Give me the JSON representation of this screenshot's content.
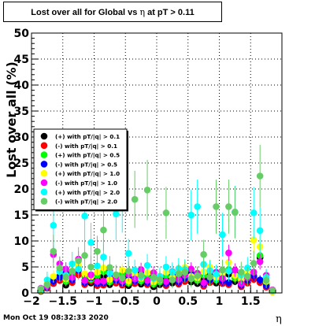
{
  "title": {
    "prefix": "Lost over all for Global vs",
    "symbol": "η",
    "suffix": "at pT > 0.11"
  },
  "footer": {
    "timestamp": "Mon Oct 19 08:32:33 2020"
  },
  "chart_data": {
    "type": "scatter",
    "ylabel": "Lost over all (%)",
    "xunit": "η",
    "xlim": [
      -2,
      2
    ],
    "ylim": [
      0,
      50
    ],
    "xticks": [
      -2,
      -1.5,
      -1,
      -0.5,
      0,
      0.5,
      1,
      1.5
    ],
    "xtick_labels": [
      "−2",
      "−1.5",
      "−1",
      "−0.5",
      "0",
      "0.5",
      "1",
      "1.5"
    ],
    "yticks": [
      0,
      5,
      10,
      15,
      20,
      25,
      30,
      35,
      40,
      45,
      50
    ],
    "grid": true,
    "legend_position": "center-left",
    "series": [
      {
        "name": "(+) with pT/|q| > 0.1",
        "color": "#000000",
        "x": [
          -1.85,
          -1.75,
          -1.65,
          -1.55,
          -1.45,
          -1.35,
          -1.25,
          -1.15,
          -1.05,
          -0.95,
          -0.85,
          -0.75,
          -0.65,
          -0.55,
          -0.45,
          -0.35,
          -0.25,
          -0.15,
          -0.05,
          0.05,
          0.15,
          0.25,
          0.35,
          0.45,
          0.55,
          0.65,
          0.75,
          0.85,
          0.95,
          1.05,
          1.15,
          1.25,
          1.35,
          1.45,
          1.55,
          1.65,
          1.75,
          1.85
        ],
        "y": [
          0.3,
          1.2,
          2.0,
          3.2,
          1.5,
          2.8,
          3.6,
          2.4,
          1.9,
          2.6,
          3.2,
          1.6,
          2.2,
          2.9,
          1.4,
          2.3,
          1.7,
          2.5,
          1.2,
          1.6,
          2.6,
          1.9,
          2.8,
          3.2,
          2.1,
          1.8,
          2.6,
          3.3,
          1.9,
          2.5,
          3.6,
          2.2,
          1.6,
          2.6,
          3.1,
          6.8,
          1.4,
          0.2
        ],
        "err": [
          0.3,
          0.6,
          0.7,
          0.8,
          0.6,
          0.7,
          0.8,
          0.7,
          0.6,
          0.7,
          0.8,
          0.6,
          0.7,
          0.7,
          0.6,
          0.7,
          0.6,
          0.7,
          0.5,
          0.6,
          0.7,
          0.6,
          0.7,
          0.8,
          0.6,
          0.6,
          0.7,
          0.8,
          0.6,
          0.7,
          0.8,
          0.7,
          0.6,
          0.7,
          0.8,
          1.0,
          0.6,
          0.3
        ]
      },
      {
        "name": "(-) with pT/|q| > 0.1",
        "color": "#ff0000",
        "x": [
          -1.85,
          -1.75,
          -1.65,
          -1.55,
          -1.45,
          -1.35,
          -1.25,
          -1.15,
          -1.05,
          -0.95,
          -0.85,
          -0.75,
          -0.65,
          -0.55,
          -0.45,
          -0.35,
          -0.25,
          -0.15,
          -0.05,
          0.05,
          0.15,
          0.25,
          0.35,
          0.45,
          0.55,
          0.65,
          0.75,
          0.85,
          0.95,
          1.05,
          1.15,
          1.25,
          1.35,
          1.45,
          1.55,
          1.65,
          1.75,
          1.85
        ],
        "y": [
          0.6,
          0.9,
          1.8,
          2.4,
          3.1,
          2.0,
          3.5,
          1.6,
          2.3,
          1.4,
          1.5,
          2.8,
          1.9,
          1.5,
          2.4,
          1.8,
          3.0,
          1.6,
          2.5,
          2.1,
          1.4,
          2.7,
          1.7,
          2.2,
          3.0,
          2.5,
          1.3,
          2.0,
          2.7,
          1.8,
          1.6,
          2.9,
          1.2,
          1.9,
          2.6,
          2.0,
          1.1,
          0.4
        ],
        "err": [
          0.3,
          0.5,
          0.6,
          0.7,
          0.8,
          0.6,
          0.8,
          0.6,
          0.7,
          0.6,
          0.6,
          0.7,
          0.6,
          0.6,
          0.7,
          0.6,
          0.7,
          0.6,
          0.7,
          0.6,
          0.5,
          0.7,
          0.6,
          0.6,
          0.7,
          0.7,
          0.5,
          0.6,
          0.7,
          0.6,
          0.6,
          0.7,
          0.5,
          0.6,
          0.7,
          0.6,
          0.5,
          0.3
        ]
      },
      {
        "name": "(+) with pT/|q| > 0.5",
        "color": "#00ff00",
        "x": [
          -1.85,
          -1.75,
          -1.65,
          -1.55,
          -1.45,
          -1.35,
          -1.25,
          -1.15,
          -1.05,
          -0.95,
          -0.85,
          -0.75,
          -0.65,
          -0.55,
          -0.45,
          -0.35,
          -0.25,
          -0.15,
          -0.05,
          0.05,
          0.15,
          0.25,
          0.35,
          0.45,
          0.55,
          0.65,
          0.75,
          0.85,
          0.95,
          1.05,
          1.15,
          1.25,
          1.35,
          1.45,
          1.55,
          1.65,
          1.75,
          1.85
        ],
        "y": [
          0.5,
          1.4,
          2.6,
          4.2,
          2.2,
          3.6,
          4.6,
          3.1,
          2.6,
          3.3,
          4.1,
          2.1,
          2.9,
          3.7,
          1.9,
          3.0,
          2.3,
          3.2,
          1.7,
          2.1,
          3.3,
          2.5,
          3.6,
          4.1,
          2.7,
          2.4,
          3.4,
          4.2,
          2.5,
          3.2,
          4.5,
          2.8,
          2.1,
          3.3,
          3.9,
          7.2,
          1.8,
          0.3
        ],
        "err": [
          0.4,
          0.8,
          0.9,
          1.1,
          0.9,
          1.0,
          1.1,
          1.0,
          0.9,
          1.0,
          1.1,
          0.9,
          1.0,
          1.0,
          0.8,
          1.0,
          0.9,
          1.0,
          0.8,
          0.9,
          1.0,
          0.9,
          1.0,
          1.1,
          0.9,
          0.9,
          1.0,
          1.1,
          0.9,
          1.0,
          1.1,
          1.0,
          0.9,
          1.0,
          1.1,
          1.4,
          0.8,
          0.4
        ]
      },
      {
        "name": "(-) with pT/|q| > 0.5",
        "color": "#0000ff",
        "x": [
          -1.85,
          -1.75,
          -1.65,
          -1.55,
          -1.45,
          -1.35,
          -1.25,
          -1.15,
          -1.05,
          -0.95,
          -0.85,
          -0.75,
          -0.65,
          -0.55,
          -0.45,
          -0.35,
          -0.25,
          -0.15,
          -0.05,
          0.05,
          0.15,
          0.25,
          0.35,
          0.45,
          0.55,
          0.65,
          0.75,
          0.85,
          0.95,
          1.05,
          1.15,
          1.25,
          1.35,
          1.45,
          1.55,
          1.65,
          1.75,
          1.85
        ],
        "y": [
          0.8,
          1.1,
          2.3,
          3.0,
          3.9,
          2.5,
          4.4,
          2.0,
          2.9,
          1.8,
          1.9,
          3.6,
          2.4,
          1.9,
          3.0,
          2.3,
          3.8,
          2.0,
          3.2,
          2.7,
          1.8,
          3.4,
          2.1,
          2.8,
          3.8,
          3.2,
          1.7,
          2.5,
          3.4,
          2.3,
          2.0,
          3.7,
          1.5,
          2.4,
          3.3,
          2.5,
          1.4,
          0.5
        ],
        "err": [
          0.4,
          0.7,
          0.9,
          1.0,
          1.1,
          0.9,
          1.1,
          0.8,
          1.0,
          0.8,
          0.8,
          1.0,
          0.9,
          0.8,
          1.0,
          0.9,
          1.1,
          0.8,
          1.0,
          0.9,
          0.8,
          1.0,
          0.9,
          0.9,
          1.0,
          1.0,
          0.8,
          0.9,
          1.0,
          0.9,
          0.8,
          1.0,
          0.7,
          0.9,
          1.0,
          0.9,
          0.7,
          0.4
        ]
      },
      {
        "name": "(+) with pT/|q| > 1.0",
        "color": "#ffff00",
        "x": [
          -1.85,
          -1.75,
          -1.65,
          -1.55,
          -1.45,
          -1.35,
          -1.25,
          -1.15,
          -1.05,
          -0.95,
          -0.85,
          -0.75,
          -0.65,
          -0.55,
          -0.45,
          -0.35,
          -0.25,
          -0.15,
          -0.05,
          0.05,
          0.15,
          0.25,
          0.35,
          0.45,
          0.55,
          0.65,
          0.75,
          0.85,
          0.95,
          1.05,
          1.15,
          1.25,
          1.35,
          1.45,
          1.55,
          1.65,
          1.75,
          1.85
        ],
        "y": [
          0.4,
          1.8,
          3.2,
          5.0,
          2.7,
          4.2,
          5.3,
          3.7,
          3.1,
          4.0,
          4.8,
          2.6,
          3.5,
          4.4,
          2.3,
          3.6,
          2.8,
          3.9,
          2.1,
          2.5,
          4.0,
          3.0,
          4.3,
          4.9,
          3.2,
          2.9,
          4.1,
          5.0,
          3.0,
          3.8,
          5.9,
          3.4,
          2.5,
          3.9,
          10.2,
          8.9,
          2.2,
          0.2
        ],
        "err": [
          0.5,
          1.0,
          1.2,
          1.4,
          1.1,
          1.3,
          1.4,
          1.2,
          1.1,
          1.3,
          1.4,
          1.1,
          1.2,
          1.3,
          1.0,
          1.2,
          1.1,
          1.3,
          1.0,
          1.1,
          1.3,
          1.1,
          1.3,
          1.4,
          1.2,
          1.1,
          1.3,
          1.4,
          1.1,
          1.2,
          1.6,
          1.2,
          1.1,
          1.3,
          2.4,
          2.0,
          1.0,
          0.5
        ]
      },
      {
        "name": "(-) with pT/|q| > 1.0",
        "color": "#ff00ff",
        "x": [
          -1.85,
          -1.75,
          -1.65,
          -1.55,
          -1.45,
          -1.35,
          -1.25,
          -1.15,
          -1.05,
          -0.95,
          -0.85,
          -0.75,
          -0.65,
          -0.55,
          -0.45,
          -0.35,
          -0.25,
          -0.15,
          -0.05,
          0.05,
          0.15,
          0.25,
          0.35,
          0.45,
          0.55,
          0.65,
          0.75,
          0.85,
          0.95,
          1.05,
          1.15,
          1.25,
          1.35,
          1.45,
          1.55,
          1.65,
          1.75,
          1.85
        ],
        "y": [
          0.9,
          1.3,
          7.4,
          5.6,
          4.6,
          3.0,
          6.5,
          2.4,
          3.5,
          2.2,
          2.3,
          4.3,
          2.9,
          2.3,
          3.6,
          2.7,
          4.5,
          2.4,
          3.9,
          3.2,
          2.2,
          4.1,
          2.6,
          3.4,
          4.6,
          3.8,
          2.0,
          3.0,
          4.0,
          2.8,
          7.7,
          4.4,
          1.8,
          2.9,
          4.0,
          6.0,
          3.4,
          0.6
        ],
        "err": [
          0.5,
          0.9,
          1.6,
          1.4,
          1.3,
          1.1,
          1.5,
          1.0,
          1.2,
          1.0,
          1.0,
          1.3,
          1.1,
          1.0,
          1.2,
          1.1,
          1.3,
          1.0,
          1.2,
          1.1,
          1.0,
          1.3,
          1.1,
          1.1,
          1.3,
          1.2,
          1.0,
          1.1,
          1.3,
          1.1,
          1.6,
          1.3,
          0.9,
          1.1,
          1.2,
          1.5,
          1.1,
          0.5
        ]
      },
      {
        "name": "(+) with pT/|q| > 2.0",
        "color": "#00ffff",
        "x": [
          -1.85,
          -1.75,
          -1.65,
          -1.55,
          -1.45,
          -1.35,
          -1.25,
          -1.15,
          -1.05,
          -0.95,
          -0.85,
          -0.75,
          -0.65,
          -0.55,
          -0.45,
          -0.35,
          -0.25,
          -0.15,
          -0.05,
          0.05,
          0.15,
          0.25,
          0.35,
          0.45,
          0.55,
          0.65,
          0.75,
          0.85,
          0.95,
          1.05,
          1.15,
          1.25,
          1.35,
          1.45,
          1.55,
          1.65,
          1.75,
          1.85
        ],
        "y": [
          0.6,
          2.5,
          13.0,
          4.1,
          3.4,
          5.6,
          4.6,
          14.8,
          9.7,
          5.2,
          6.9,
          3.8,
          15.2,
          17.0,
          7.6,
          4.4,
          3.1,
          5.3,
          2.8,
          3.2,
          5.0,
          4.0,
          4.7,
          4.5,
          15.0,
          16.6,
          5.5,
          4.3,
          3.6,
          11.2,
          4.2,
          15.6,
          3.5,
          4.8,
          15.4,
          12.0,
          3.0,
          0.4
        ],
        "err": [
          0.7,
          1.6,
          5.0,
          2.0,
          1.8,
          2.3,
          2.1,
          4.8,
          3.8,
          2.2,
          2.6,
          1.9,
          5.0,
          5.4,
          2.8,
          2.0,
          1.7,
          2.2,
          1.6,
          1.7,
          2.1,
          1.9,
          2.0,
          2.0,
          4.9,
          5.2,
          2.3,
          2.0,
          1.8,
          4.2,
          2.0,
          5.0,
          1.8,
          2.1,
          5.0,
          4.5,
          1.6,
          0.6
        ]
      },
      {
        "name": "(-) with pT/|q| > 2.0",
        "color": "#66cc66",
        "x": [
          -1.85,
          -1.75,
          -1.65,
          -1.55,
          -1.45,
          -1.35,
          -1.25,
          -1.15,
          -1.05,
          -0.95,
          -0.85,
          -0.75,
          -0.65,
          -0.55,
          -0.45,
          -0.35,
          -0.25,
          -0.15,
          -0.05,
          0.05,
          0.15,
          0.25,
          0.35,
          0.45,
          0.55,
          0.65,
          0.75,
          0.85,
          0.95,
          1.05,
          1.15,
          1.25,
          1.35,
          1.45,
          1.55,
          1.65,
          1.75,
          1.85
        ],
        "y": [
          0.8,
          1.6,
          8.0,
          4.8,
          3.0,
          4.2,
          6.2,
          7.2,
          5.0,
          8.0,
          12.1,
          4.9,
          3.5,
          2.9,
          4.2,
          18.0,
          3.4,
          19.8,
          3.0,
          2.6,
          15.4,
          2.5,
          3.7,
          4.0,
          2.8,
          3.3,
          7.4,
          3.1,
          16.6,
          4.4,
          16.6,
          15.5,
          4.0,
          3.2,
          5.7,
          22.5,
          2.4,
          0.5
        ],
        "err": [
          0.8,
          1.4,
          3.2,
          2.2,
          1.7,
          2.0,
          2.6,
          2.8,
          2.2,
          3.0,
          4.0,
          2.2,
          1.9,
          1.7,
          2.0,
          5.5,
          1.9,
          5.8,
          1.7,
          1.6,
          5.0,
          1.6,
          1.9,
          2.0,
          1.7,
          1.8,
          2.8,
          1.8,
          5.2,
          2.0,
          5.2,
          5.0,
          2.0,
          1.8,
          2.4,
          6.0,
          1.5,
          0.6
        ]
      }
    ]
  }
}
